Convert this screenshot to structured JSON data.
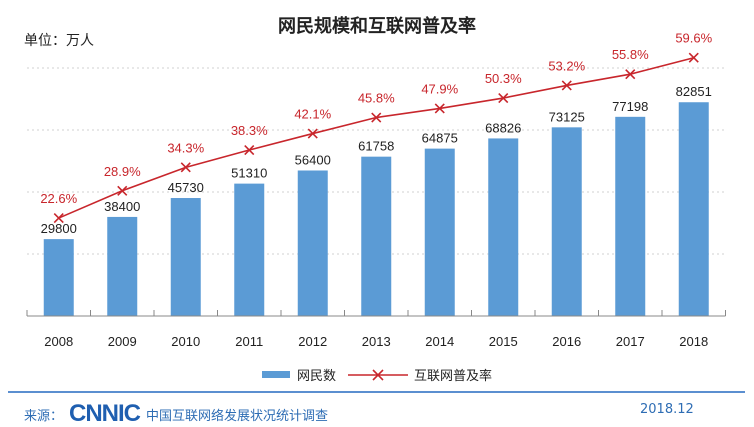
{
  "chart_data": {
    "type": "bar+line",
    "title": "网民规模和互联网普及率",
    "unit_label": "单位：万人",
    "categories": [
      "2008",
      "2009",
      "2010",
      "2011",
      "2012",
      "2013",
      "2014",
      "2015",
      "2016",
      "2017",
      "2018"
    ],
    "series": [
      {
        "name": "网民数",
        "type": "bar",
        "color": "#5b9bd5",
        "values": [
          29800,
          38400,
          45730,
          51310,
          56400,
          61758,
          64875,
          68826,
          73125,
          77198,
          82851
        ],
        "labels": [
          "29800",
          "38400",
          "45730",
          "51310",
          "56400",
          "61758",
          "64875",
          "68826",
          "73125",
          "77198",
          "82851"
        ]
      },
      {
        "name": "互联网普及率",
        "type": "line",
        "color": "#c8262c",
        "values": [
          22.6,
          28.9,
          34.3,
          38.3,
          42.1,
          45.8,
          47.9,
          50.3,
          53.2,
          55.8,
          59.6
        ],
        "labels": [
          "22.6%",
          "28.9%",
          "34.3%",
          "38.3%",
          "42.1%",
          "45.8%",
          "47.9%",
          "50.3%",
          "53.2%",
          "55.8%",
          "59.6%"
        ]
      }
    ],
    "ylim": [
      0,
      100000
    ],
    "y2lim": [
      0,
      60
    ],
    "grid": true,
    "legend": "bottom-center"
  },
  "footer": {
    "source_label": "来源：",
    "logo": "CNNIC",
    "source_text": "中国互联网络发展状况统计调查",
    "date": "2018.12"
  }
}
